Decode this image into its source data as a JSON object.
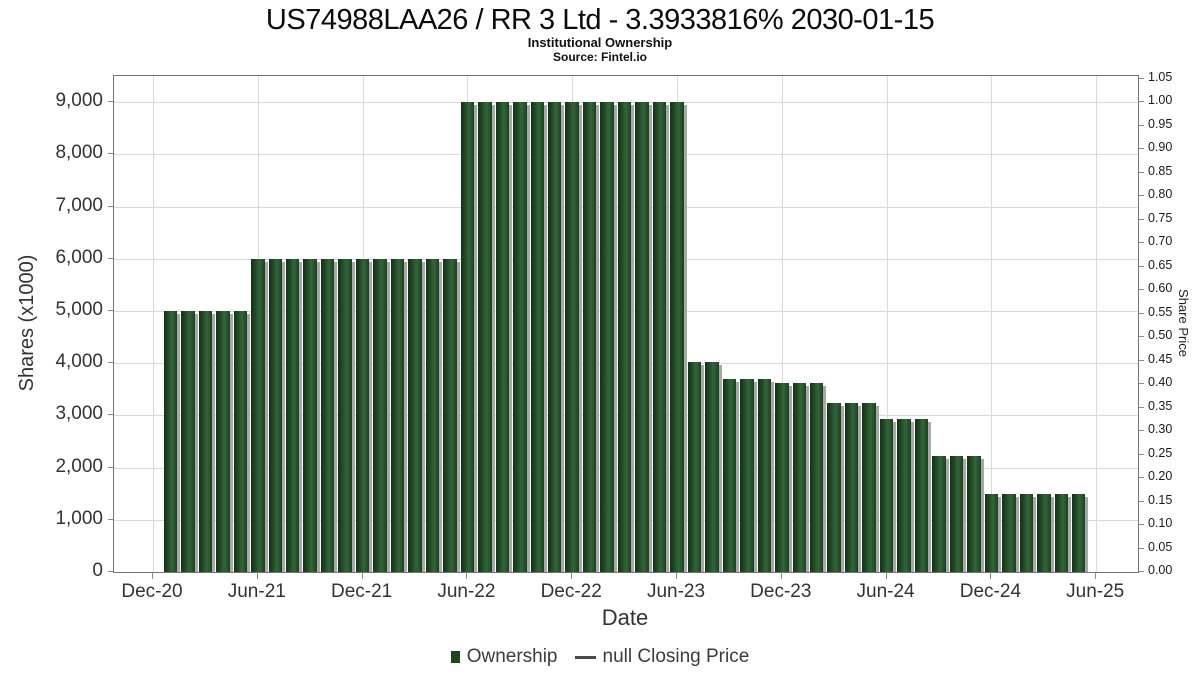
{
  "chart_data": {
    "type": "bar",
    "title": "US74988LAA26 / RR 3 Ltd - 3.3933816% 2030-01-15",
    "subtitle": "Institutional Ownership",
    "source": "Source: Fintel.io",
    "xlabel": "Date",
    "ylabel": "Shares (x1000)",
    "ylabel_right": "Share Price",
    "grid": true,
    "legend_position": "bottom",
    "legend": {
      "items": [
        {
          "label": "Ownership",
          "marker": "square"
        },
        {
          "label": "null Closing Price",
          "marker": "line"
        }
      ]
    },
    "x_ticks": [
      "Dec-20",
      "Jun-21",
      "Dec-21",
      "Jun-22",
      "Dec-22",
      "Jun-23",
      "Dec-23",
      "Jun-24",
      "Dec-24",
      "Jun-25"
    ],
    "y_left_ticks": [
      "0",
      "1,000",
      "2,000",
      "3,000",
      "4,000",
      "5,000",
      "6,000",
      "7,000",
      "8,000",
      "9,000"
    ],
    "y_right_ticks": [
      "0.00",
      "0.05",
      "0.10",
      "0.15",
      "0.20",
      "0.25",
      "0.30",
      "0.35",
      "0.40",
      "0.45",
      "0.50",
      "0.55",
      "0.60",
      "0.65",
      "0.70",
      "0.75",
      "0.80",
      "0.85",
      "0.90",
      "0.95",
      "1.00",
      "1.05"
    ],
    "ylim": [
      0,
      9500
    ],
    "ylim_right": [
      0,
      1.055
    ],
    "series_name": "Ownership",
    "x": [
      "Jan-21",
      "Feb-21",
      "Mar-21",
      "Apr-21",
      "May-21",
      "Jun-21",
      "Jul-21",
      "Aug-21",
      "Sep-21",
      "Oct-21",
      "Nov-21",
      "Dec-21",
      "Jan-22",
      "Feb-22",
      "Mar-22",
      "Apr-22",
      "May-22",
      "Jun-22",
      "Jul-22",
      "Aug-22",
      "Sep-22",
      "Oct-22",
      "Nov-22",
      "Dec-22",
      "Jan-23",
      "Feb-23",
      "Mar-23",
      "Apr-23",
      "May-23",
      "Jun-23",
      "Jul-23",
      "Aug-23",
      "Sep-23",
      "Oct-23",
      "Nov-23",
      "Dec-23",
      "Jan-24",
      "Feb-24",
      "Mar-24",
      "Apr-24",
      "May-24",
      "Jun-24",
      "Jul-24",
      "Aug-24",
      "Sep-24",
      "Oct-24",
      "Nov-24",
      "Dec-24",
      "Jan-25",
      "Feb-25",
      "Mar-25",
      "Apr-25",
      "May-25"
    ],
    "values": [
      5000,
      5000,
      5000,
      5000,
      5000,
      6000,
      6000,
      6000,
      6000,
      6000,
      6000,
      6000,
      6000,
      6000,
      6000,
      6000,
      6000,
      9000,
      9000,
      9000,
      9000,
      9000,
      9000,
      9000,
      9000,
      9000,
      9000,
      9000,
      9000,
      9000,
      4030,
      4030,
      3690,
      3690,
      3690,
      3620,
      3620,
      3620,
      3230,
      3230,
      3230,
      2930,
      2930,
      2930,
      2220,
      2220,
      2220,
      1500,
      1500,
      1500,
      1500,
      1500,
      1500
    ],
    "colors": {
      "bar": "#1d4521",
      "bar_shadow": "#a8a8a8",
      "grid_line": "#dadada",
      "axis_line": "#757575",
      "tick_text": "#333333",
      "title_text": "#0c0c0c"
    }
  }
}
